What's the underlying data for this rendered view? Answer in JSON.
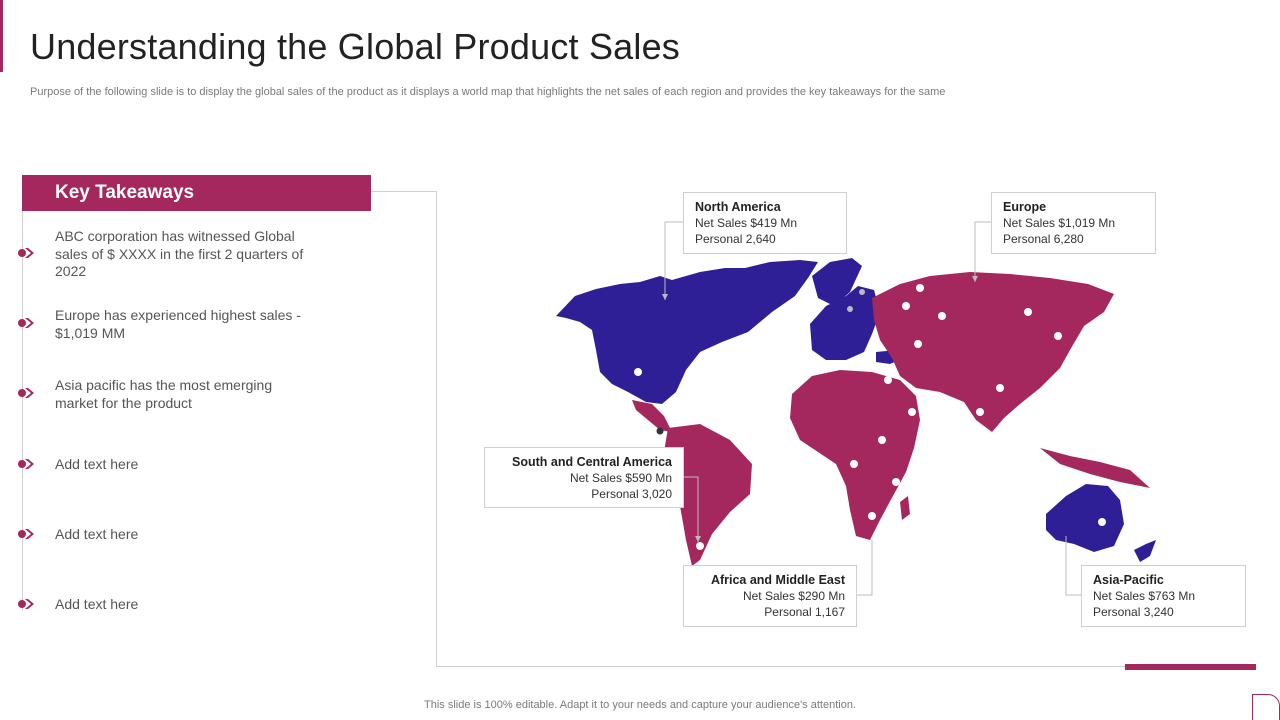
{
  "slide": {
    "title": "Understanding the Global Product Sales",
    "subtitle": "Purpose of the following slide is to display the global sales of the product as it displays a world map that highlights the net sales of each region and provides the key takeaways for the same",
    "footer": "This slide is 100% editable. Adapt it to your needs and capture your audience's attention."
  },
  "colors": {
    "accent": "#a4275d",
    "map_purple": "#2e1f96",
    "map_magenta": "#a4275d"
  },
  "takeaways": {
    "header": "Key Takeaways",
    "items": [
      {
        "text": "ABC corporation has witnessed Global sales of $ XXXX  in the first 2 quarters of 2022",
        "icon": "chevron-bullet-icon"
      },
      {
        "text": "Europe has experienced highest sales  - $1,019 MM",
        "icon": "chevron-bullet-icon"
      },
      {
        "text": "Asia pacific has the most emerging market for the product",
        "icon": "chevron-bullet-icon"
      },
      {
        "text": "Add text here",
        "icon": "chevron-bullet-icon"
      },
      {
        "text": "Add text here",
        "icon": "chevron-bullet-icon"
      },
      {
        "text": "Add text here",
        "icon": "chevron-bullet-icon"
      }
    ]
  },
  "regions": {
    "north_america": {
      "name": "North America",
      "net_sales": "Net Sales $419 Mn",
      "personal": "Personal 2,640"
    },
    "europe": {
      "name": "Europe",
      "net_sales": "Net Sales $1,019 Mn",
      "personal": "Personal 6,280"
    },
    "south_central_america": {
      "name": "South and Central America",
      "net_sales": "Net Sales $590 Mn",
      "personal": "Personal 3,020"
    },
    "africa_middle_east": {
      "name": "Africa and Middle East",
      "net_sales": "Net Sales $290 Mn",
      "personal": "Personal 1,167"
    },
    "asia_pacific": {
      "name": "Asia-Pacific",
      "net_sales": "Net Sales $763 Mn",
      "personal": "Personal 3,240"
    }
  }
}
